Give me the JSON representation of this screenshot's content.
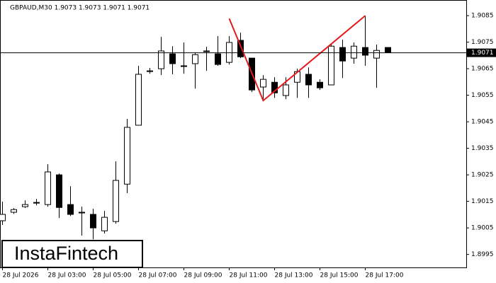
{
  "chart_data": {
    "type": "candlestick",
    "title": "GBPAUD,M30  1.9073 1.9073 1.9071 1.9071",
    "watermark": "InstaFintech",
    "categories": [
      "28 Jul 2026",
      null,
      null,
      null,
      "28 Jul 03:00",
      null,
      null,
      null,
      "28 Jul 05:00",
      null,
      null,
      null,
      "28 Jul 07:00",
      null,
      null,
      null,
      "28 Jul 09:00",
      null,
      null,
      null,
      "28 Jul 11:00",
      null,
      null,
      null,
      "28 Jul 13:00",
      null,
      null,
      null,
      "28 Jul 15:00",
      null,
      null,
      null,
      "28 Jul 17:00",
      null,
      null
    ],
    "open": [
      1.90077,
      1.90109,
      1.9013,
      1.90146,
      1.90138,
      1.9025,
      1.90138,
      1.90109,
      1.90101,
      1.90039,
      1.90074,
      1.90215,
      1.90437,
      1.90642,
      1.9065,
      1.90706,
      1.90661,
      1.90669,
      1.90717,
      1.90706,
      1.90674,
      1.90757,
      1.9069,
      1.90581,
      1.90599,
      1.90549,
      1.90599,
      1.90629,
      1.90599,
      1.90589,
      1.9073,
      1.9069,
      1.9073,
      1.9069,
      1.9073
    ],
    "high": [
      1.90149,
      1.90125,
      1.90154,
      1.90159,
      1.9029,
      1.90255,
      1.90207,
      1.9013,
      1.90122,
      1.90114,
      1.90301,
      1.90461,
      1.90661,
      1.90653,
      1.9077,
      1.90735,
      1.90749,
      1.90711,
      1.90733,
      1.90773,
      1.90773,
      1.90786,
      1.9069,
      1.90626,
      1.90618,
      1.90618,
      1.9065,
      1.90655,
      1.9061,
      1.90741,
      1.90759,
      1.90749,
      1.9085,
      1.90741,
      1.9073
    ],
    "low": [
      1.90061,
      1.90103,
      1.90125,
      1.90135,
      1.9013,
      1.90087,
      1.90095,
      1.90021,
      1.90007,
      1.90029,
      1.90066,
      1.90181,
      1.90437,
      1.90631,
      1.90626,
      1.90629,
      1.90631,
      1.90575,
      1.90642,
      1.90661,
      1.90666,
      1.9069,
      1.90562,
      1.90535,
      1.9054,
      1.90535,
      1.9054,
      1.9054,
      1.9057,
      1.90589,
      1.90615,
      1.90669,
      1.90661,
      1.90578,
      1.90709
    ],
    "close": [
      1.90101,
      1.90119,
      1.90138,
      1.90146,
      1.90261,
      1.90127,
      1.90101,
      1.90109,
      1.9005,
      1.9009,
      1.90229,
      1.90429,
      1.90629,
      1.90642,
      1.90717,
      1.90669,
      1.90661,
      1.90703,
      1.90717,
      1.90666,
      1.90749,
      1.90695,
      1.9057,
      1.9061,
      1.90559,
      1.90589,
      1.90639,
      1.90589,
      1.90578,
      1.90735,
      1.90679,
      1.90735,
      1.90701,
      1.90719,
      1.90711
    ],
    "up_color": "#ffffff",
    "down_color": "#000000",
    "pattern": {
      "color": "#e41a1c",
      "x": [
        20,
        23,
        32
      ],
      "values": [
        1.90839,
        1.9053,
        1.9085
      ]
    },
    "current_price": 1.9071,
    "ylim": [
      1.89901,
      1.90909
    ],
    "yticks": [
      1.9085,
      1.9075,
      1.9065,
      1.9055,
      1.9045,
      1.9035,
      1.9025,
      1.9015,
      1.9005,
      1.8995
    ]
  }
}
